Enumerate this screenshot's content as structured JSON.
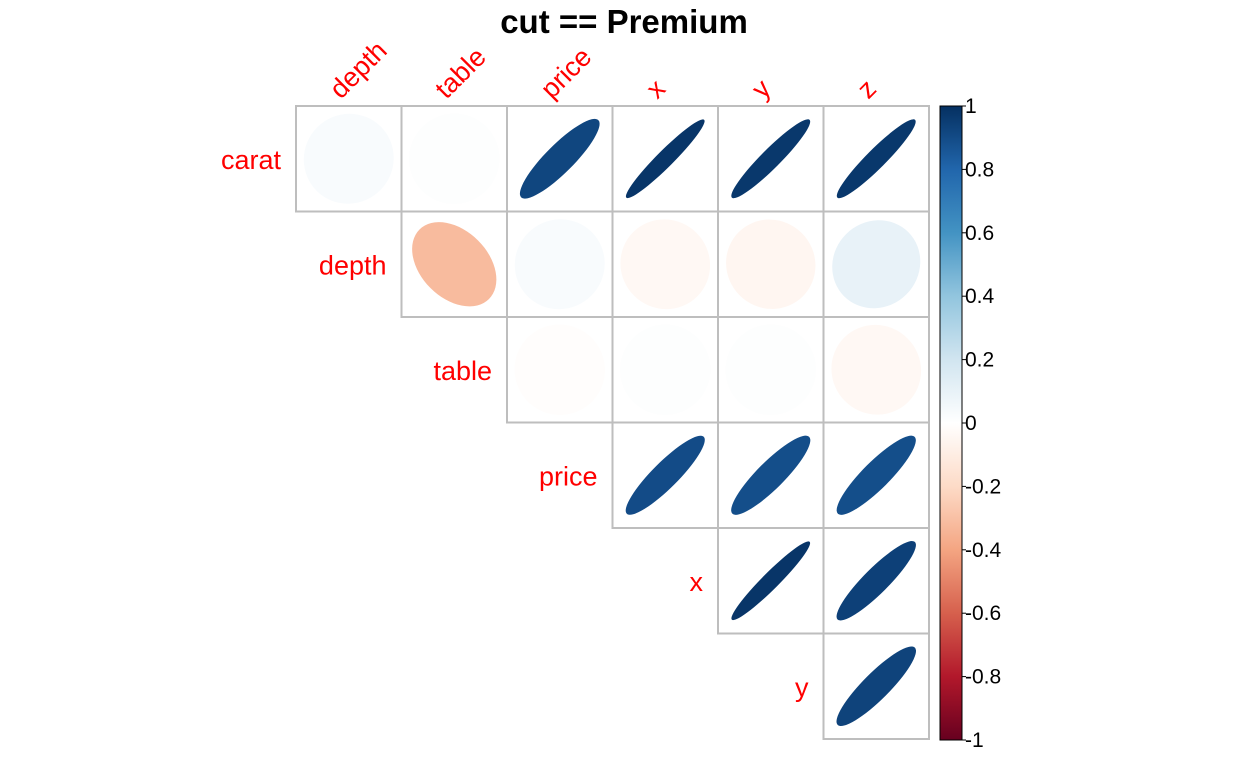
{
  "chart_data": {
    "type": "heatmap",
    "subtype": "correlation-ellipse-upper-triangle",
    "title": "cut == Premium",
    "variables": [
      "carat",
      "depth",
      "table",
      "price",
      "x",
      "y",
      "z"
    ],
    "row_labels": [
      "carat",
      "depth",
      "table",
      "price",
      "x",
      "y"
    ],
    "column_labels": [
      "depth",
      "table",
      "price",
      "x",
      "y",
      "z"
    ],
    "label_color": "#FF0000",
    "cells": [
      {
        "row": "carat",
        "col": "depth",
        "value": 0.03
      },
      {
        "row": "carat",
        "col": "table",
        "value": 0.01
      },
      {
        "row": "carat",
        "col": "price",
        "value": 0.92
      },
      {
        "row": "carat",
        "col": "x",
        "value": 0.98
      },
      {
        "row": "carat",
        "col": "y",
        "value": 0.97
      },
      {
        "row": "carat",
        "col": "z",
        "value": 0.97
      },
      {
        "row": "depth",
        "col": "table",
        "value": -0.32
      },
      {
        "row": "depth",
        "col": "price",
        "value": 0.03
      },
      {
        "row": "depth",
        "col": "x",
        "value": -0.04
      },
      {
        "row": "depth",
        "col": "y",
        "value": -0.05
      },
      {
        "row": "depth",
        "col": "z",
        "value": 0.1
      },
      {
        "row": "table",
        "col": "price",
        "value": -0.01
      },
      {
        "row": "table",
        "col": "x",
        "value": 0.01
      },
      {
        "row": "table",
        "col": "y",
        "value": 0.01
      },
      {
        "row": "table",
        "col": "z",
        "value": -0.04
      },
      {
        "row": "price",
        "col": "x",
        "value": 0.9
      },
      {
        "row": "price",
        "col": "y",
        "value": 0.89
      },
      {
        "row": "price",
        "col": "z",
        "value": 0.89
      },
      {
        "row": "x",
        "col": "y",
        "value": 0.98
      },
      {
        "row": "x",
        "col": "z",
        "value": 0.94
      },
      {
        "row": "y",
        "col": "z",
        "value": 0.93
      }
    ],
    "colorbar": {
      "range": [
        -1,
        1
      ],
      "ticks": [
        "1",
        "0.8",
        "0.6",
        "0.4",
        "0.2",
        "0",
        "-0.2",
        "-0.4",
        "-0.6",
        "-0.8",
        "-1"
      ],
      "palette": [
        "#67001F",
        "#B2182B",
        "#D6604D",
        "#F4A582",
        "#FDDBC7",
        "#FFFFFF",
        "#D1E5F0",
        "#92C5DE",
        "#4393C3",
        "#2166AC",
        "#053061"
      ]
    },
    "grid": true,
    "legend_position": "right"
  }
}
